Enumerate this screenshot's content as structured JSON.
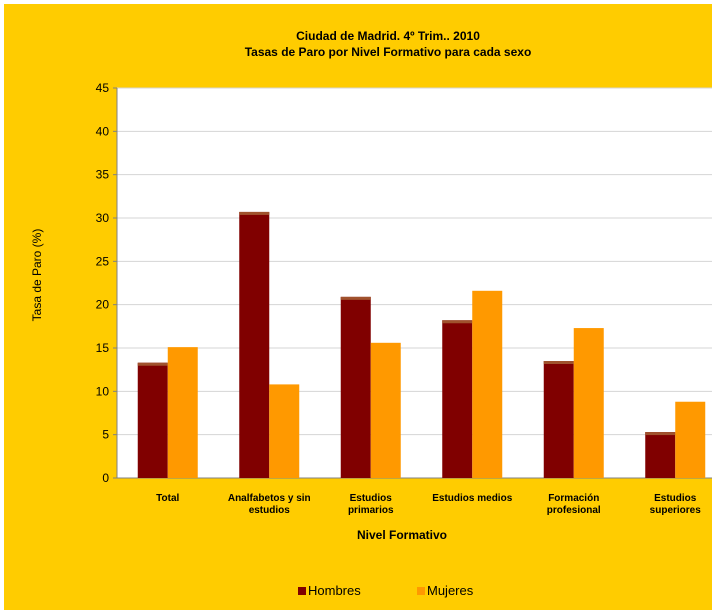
{
  "colors": {
    "background": "#FFCC00",
    "plot_area": "#FFFFFF",
    "hombres": "#800000",
    "hombres_top": "#A0522D",
    "mujeres": "#FF9900",
    "gridline": "#D4D4D4"
  },
  "chart_data": {
    "type": "bar",
    "title": "Ciudad de Madrid. 4º Trim.. 2010",
    "subtitle": "Tasas de Paro por Nivel Formativo para cada sexo",
    "xlabel": "Nivel Formativo",
    "ylabel": "Tasa de Paro (%)",
    "ylim": [
      0,
      45
    ],
    "yticks": [
      0,
      5,
      10,
      15,
      20,
      25,
      30,
      35,
      40,
      45
    ],
    "grid": true,
    "legend_position": "bottom",
    "categories": [
      [
        "Total"
      ],
      [
        "Analfabetos y sin",
        "estudios"
      ],
      [
        "Estudios",
        "primarios"
      ],
      [
        "Estudios medios"
      ],
      [
        "Formación",
        "profesional"
      ],
      [
        "Estudios",
        "superiores"
      ]
    ],
    "series": [
      {
        "name": "Hombres",
        "values": [
          13.3,
          30.7,
          20.9,
          18.2,
          13.5,
          5.3
        ]
      },
      {
        "name": "Mujeres",
        "values": [
          15.1,
          10.8,
          15.6,
          21.6,
          17.3,
          8.8
        ]
      }
    ]
  }
}
